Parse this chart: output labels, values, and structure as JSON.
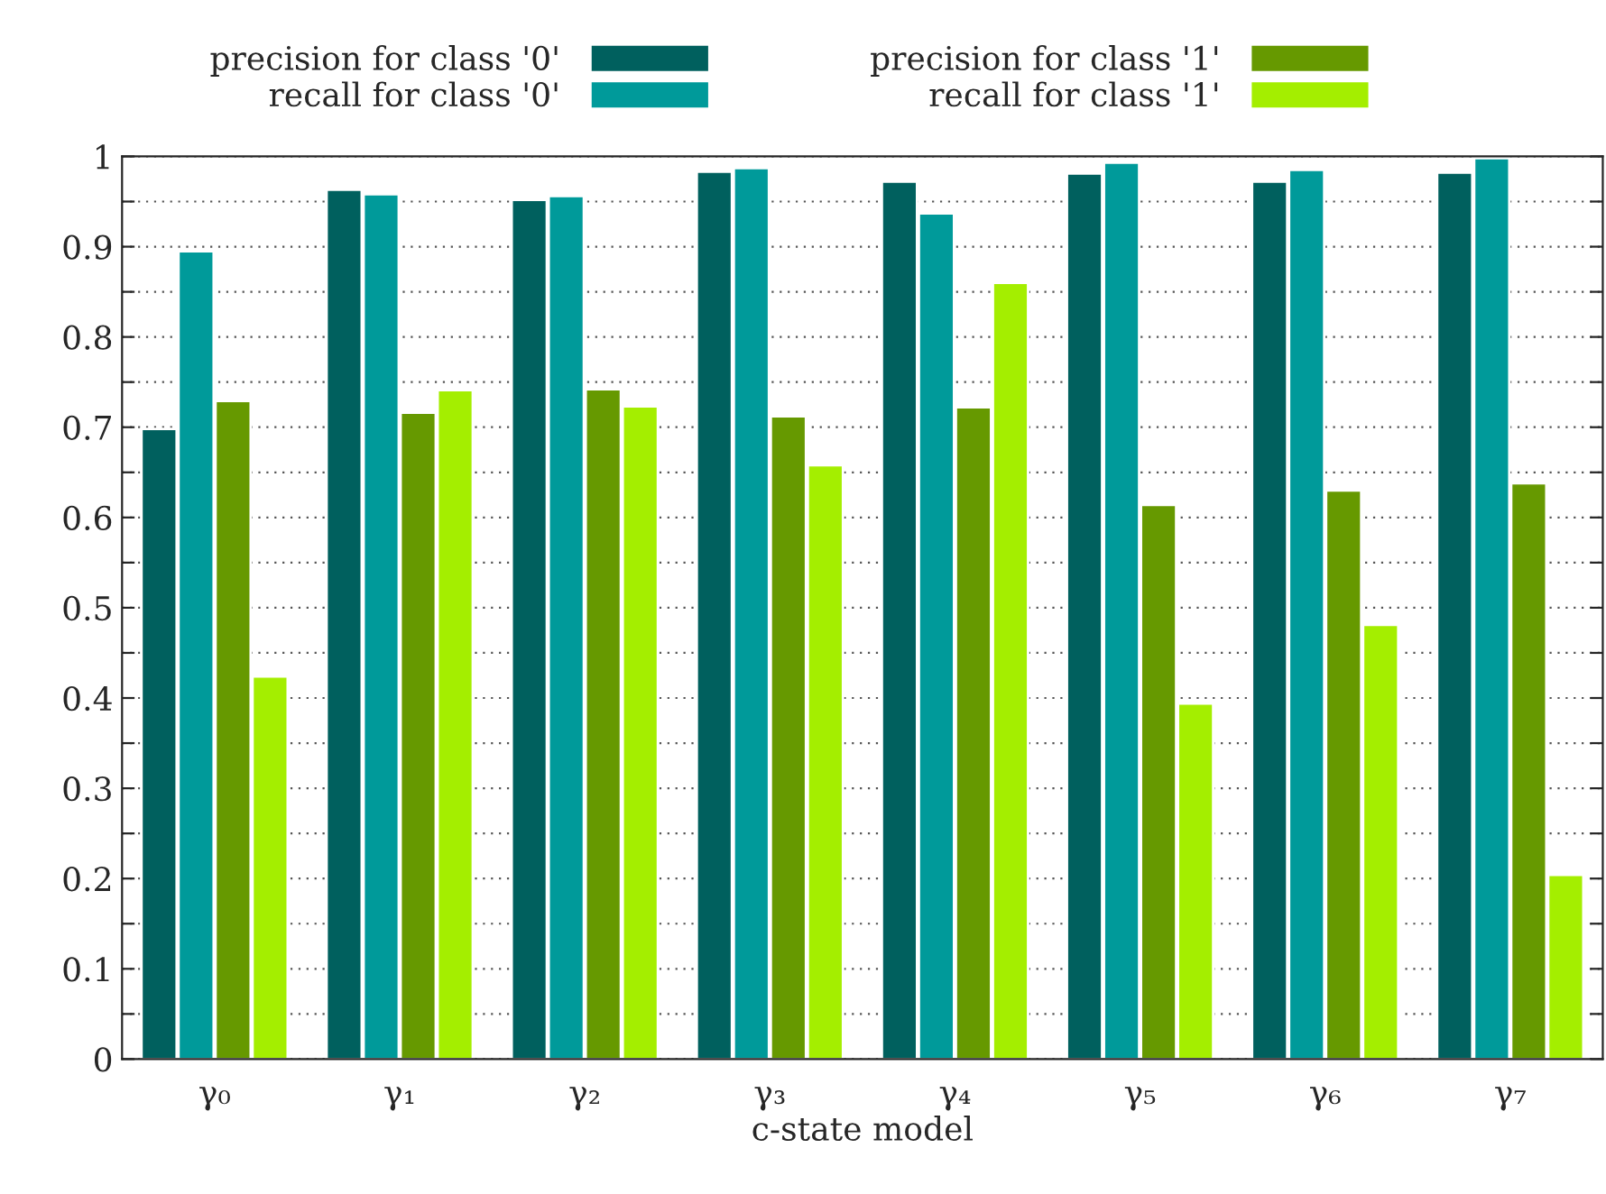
{
  "chart_data": {
    "type": "bar",
    "xlabel": "c-state model",
    "categories": [
      "γ₀",
      "γ₁",
      "γ₂",
      "γ₃",
      "γ₄",
      "γ₅",
      "γ₆",
      "γ₇"
    ],
    "series": [
      {
        "name": "precision for class '0'",
        "color": "#00605e",
        "values": [
          0.698,
          0.963,
          0.952,
          0.983,
          0.972,
          0.981,
          0.972,
          0.982
        ]
      },
      {
        "name": "recall for class '0'",
        "color": "#009a9a",
        "values": [
          0.895,
          0.958,
          0.956,
          0.987,
          0.937,
          0.993,
          0.985,
          0.998
        ]
      },
      {
        "name": "precision for class '1'",
        "color": "#669900",
        "values": [
          0.729,
          0.716,
          0.742,
          0.712,
          0.722,
          0.614,
          0.63,
          0.638
        ]
      },
      {
        "name": "recall for class '1'",
        "color": "#a4ee00",
        "values": [
          0.424,
          0.741,
          0.723,
          0.658,
          0.86,
          0.394,
          0.481,
          0.204
        ]
      }
    ],
    "ylim": [
      0,
      1
    ],
    "yticks": [
      0,
      {
        "value": 0.05,
        "label": null
      },
      0.1,
      {
        "value": 0.15,
        "label": null
      },
      0.2,
      {
        "value": 0.25,
        "label": null
      },
      0.3,
      {
        "value": 0.35,
        "label": null
      },
      0.4,
      {
        "value": 0.45,
        "label": null
      },
      0.5,
      {
        "value": 0.55,
        "label": null
      },
      0.6,
      {
        "value": 0.65,
        "label": null
      },
      0.7,
      {
        "value": 0.75,
        "label": null
      },
      0.8,
      {
        "value": 0.85,
        "label": null
      },
      0.9,
      {
        "value": 0.95,
        "label": null
      },
      1
    ],
    "grid": "y",
    "legend": "top"
  }
}
